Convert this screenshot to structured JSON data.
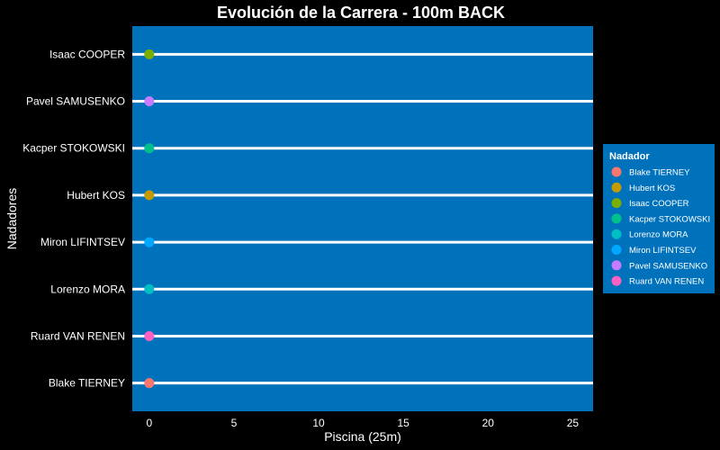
{
  "chart_data": {
    "type": "scatter",
    "title": "Evolución de la Carrera - 100m BACK",
    "xlabel": "Piscina (25m)",
    "ylabel": "Nadadores",
    "xlim": [
      -1,
      26.2
    ],
    "xticks": [
      0,
      5,
      10,
      15,
      20,
      25
    ],
    "categories": [
      "Blake TIERNEY",
      "Ruard VAN RENEN",
      "Lorenzo MORA",
      "Miron LIFINTSEV",
      "Hubert KOS",
      "Kacper  STOKOWSKI",
      "Pavel SAMUSENKO",
      "Isaac COOPER"
    ],
    "points": [
      {
        "name": "Blake TIERNEY",
        "x": 0,
        "color": "#F8766D"
      },
      {
        "name": "Ruard VAN RENEN",
        "x": 0,
        "color": "#FF61C3"
      },
      {
        "name": "Lorenzo MORA",
        "x": 0,
        "color": "#00BFC4"
      },
      {
        "name": "Miron LIFINTSEV",
        "x": 0,
        "color": "#00A9FF"
      },
      {
        "name": "Hubert KOS",
        "x": 0,
        "color": "#C49A00"
      },
      {
        "name": "Kacper  STOKOWSKI",
        "x": 0,
        "color": "#00C08B"
      },
      {
        "name": "Pavel SAMUSENKO",
        "x": 0,
        "color": "#C77CFF"
      },
      {
        "name": "Isaac COOPER",
        "x": 0,
        "color": "#7CAE00"
      }
    ],
    "legend": {
      "title": "Nadador",
      "position": "right",
      "items": [
        {
          "label": "Blake TIERNEY",
          "color": "#F8766D"
        },
        {
          "label": "Hubert KOS",
          "color": "#C49A00"
        },
        {
          "label": "Isaac COOPER",
          "color": "#7CAE00"
        },
        {
          "label": "Kacper  STOKOWSKI",
          "color": "#00C08B"
        },
        {
          "label": "Lorenzo MORA",
          "color": "#00BFC4"
        },
        {
          "label": "Miron LIFINTSEV",
          "color": "#00A9FF"
        },
        {
          "label": "Pavel SAMUSENKO",
          "color": "#C77CFF"
        },
        {
          "label": "Ruard VAN RENEN",
          "color": "#FF61C3"
        }
      ]
    },
    "grid": false,
    "colors": {
      "page_background": "#000000",
      "panel_background": "#0072BB",
      "lane_line": "#ffffff",
      "text": "#ffffff"
    }
  }
}
